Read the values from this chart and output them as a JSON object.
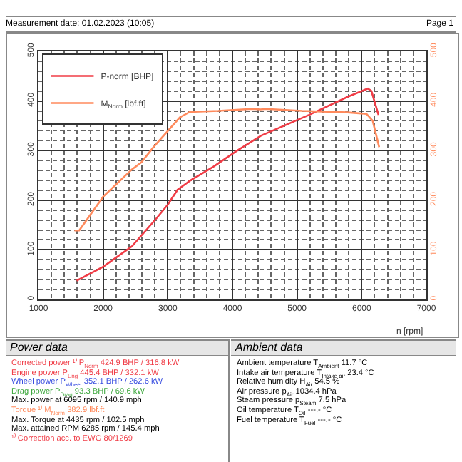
{
  "chart_data": {
    "type": "line",
    "xlabel": "n [rpm]",
    "series": [
      {
        "name": "P-norm [BHP]",
        "color": "#f03c46",
        "x": [
          1590,
          2000,
          2444,
          2815,
          3000,
          3150,
          3340,
          3700,
          4075,
          4440,
          5186,
          5778,
          6095,
          6150,
          6260
        ],
        "values": [
          38,
          66,
          107,
          162,
          191,
          221,
          239,
          267,
          300,
          330,
          372,
          408,
          425,
          420,
          372
        ]
      },
      {
        "name": "M$_{Norm}$ [lbf.ft]",
        "color": "#ff8a5c",
        "axis": "y2",
        "x": [
          1556,
          1630,
          2000,
          2444,
          2590,
          2778,
          3187,
          3340,
          3780,
          4296,
          4435,
          4518,
          5074,
          5778,
          6074,
          6170,
          6270
        ],
        "values": [
          139,
          139,
          207,
          262,
          276,
          307,
          367,
          378,
          380,
          384,
          383,
          384,
          380,
          377,
          374,
          360,
          307
        ]
      }
    ],
    "xlim": [
      1000,
      7000
    ],
    "xticks": [
      1000,
      2000,
      3000,
      4000,
      5000,
      6000,
      7000
    ],
    "ylim": [
      0,
      500
    ],
    "yticks": [
      0,
      100,
      200,
      300,
      400,
      500
    ],
    "y2lim": [
      0,
      500
    ],
    "y2ticks": [
      0,
      100,
      200,
      300,
      400,
      500
    ],
    "grid": true,
    "legend": "top left",
    "marker": "none",
    "line_style": "solid",
    "annotations": [
      "Measurement date: 01.02.2023 (10:05)",
      "Page 1",
      "Power data",
      "Corrected power ¹⁾ P$_{Norm}$ 424.9 BHP / 316.8 kW",
      "Engine power P$_{Eng}$ 445.4 BHP / 332.1 kW",
      "Wheel power P$_{Wheel}$ 352.1 BHP / 262.6 kW",
      "Drag power P$_{Drag}$ 93.3 BHP / 69.6 kW",
      "Max. power at 6095 rpm / 140.9 mph",
      "Torque ¹⁾ M$_{Norm}$ 382.9 lbf.ft",
      "Max. Torque at 4435 rpm / 102.5 mph",
      "Max. attained RPM 6285 rpm / 145.4 mph",
      "¹⁾ Correction acc. to EWG 80/1269",
      "Ambient data",
      "Ambient temperature T$_{Ambient}$ 11.7 °C",
      "Intake air temperature T$_{Intake air}$ 23.4 °C",
      "Relative humidity H$_{Air}$ 54.5 %",
      "Air pressure p$_{Air}$ 1034.4 hPa",
      "Steam pressure p$_{Steam}$ 7.5 hPa",
      "Oil temperature T$_{Oil}$ ---.- °C",
      "Fuel temperature T$_{Fuel}$ ---.- °C"
    ]
  }
}
